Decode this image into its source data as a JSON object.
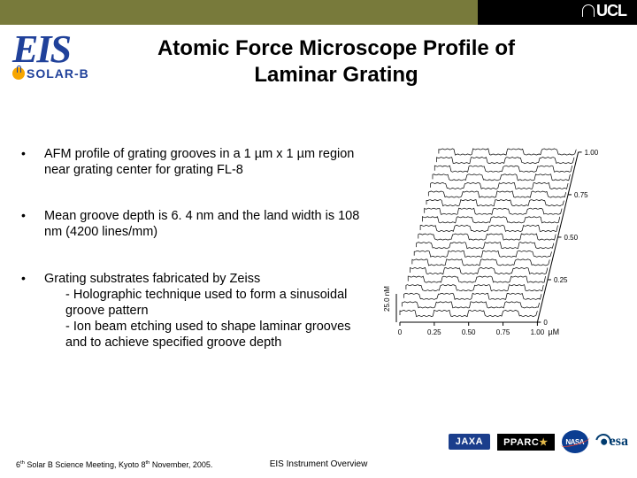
{
  "header": {
    "ucl_label": "UCL",
    "eis_label": "EIS",
    "solarb_label": "SOLAR-B",
    "topbar_color": "#787a3b",
    "brand_blue": "#20419a"
  },
  "title": "Atomic Force Microscope Profile of Laminar Grating",
  "bullets": [
    {
      "text": "AFM profile of grating grooves in a 1 µm x 1 µm region near grating center for grating FL-8"
    },
    {
      "text": "Mean groove depth is 6. 4 nm and the land width is 108 nm (4200 lines/mm)"
    },
    {
      "text": "Grating substrates fabricated by Zeiss",
      "subs": [
        "Holographic technique used to form a sinusoidal groove pattern",
        "Ion beam etching used to shape laminar grooves and to achieve specified groove depth"
      ]
    }
  ],
  "afm": {
    "x_unit_label": "µM",
    "y_right_ticks": [
      "0",
      "0.25",
      "0.50",
      "0.75",
      "1.00"
    ],
    "x_ticks": [
      "0",
      "0.25",
      "0.50",
      "0.75",
      "1.00"
    ],
    "z_label": "25.0 nM",
    "traces": 20,
    "periods": 4,
    "amplitude_nm": 6.4,
    "period_um": 0.238,
    "stroke": "#000000",
    "plot_bg": "#ffffff"
  },
  "footer": {
    "left_html": "6<sup>th</sup> Solar B Science Meeting, Kyoto 8<sup>th</sup> November, 2005.",
    "center": "EIS Instrument Overview",
    "logos": {
      "jaxa": "JAXA",
      "pparc": "PPARC",
      "nasa": "NASA",
      "esa": "esa"
    }
  }
}
